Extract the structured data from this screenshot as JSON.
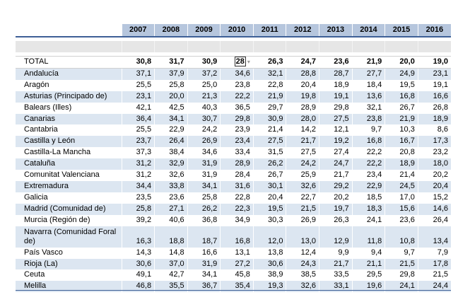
{
  "years": [
    "2007",
    "2008",
    "2009",
    "2010",
    "2011",
    "2012",
    "2013",
    "2014",
    "2015",
    "2016"
  ],
  "total": {
    "label": "TOTAL",
    "values": [
      "30,8",
      "31,7",
      "30,9",
      "28",
      "26,3",
      "24,7",
      "23,6",
      "21,9",
      "20,0",
      "19,0"
    ]
  },
  "rows": [
    {
      "label": "Andalucía",
      "values": [
        "37,1",
        "37,9",
        "37,2",
        "34,6",
        "32,1",
        "28,8",
        "28,7",
        "27,7",
        "24,9",
        "23,1"
      ]
    },
    {
      "label": "Aragón",
      "values": [
        "25,5",
        "25,8",
        "25,0",
        "23,8",
        "22,8",
        "20,4",
        "18,9",
        "18,4",
        "19,5",
        "19,1"
      ]
    },
    {
      "label": "Asturias (Principado de)",
      "values": [
        "23,1",
        "20,0",
        "21,3",
        "22,2",
        "21,9",
        "19,8",
        "19,1",
        "13,6",
        "16,8",
        "16,6"
      ]
    },
    {
      "label": "Balears (Illes)",
      "values": [
        "42,1",
        "42,5",
        "40,3",
        "36,5",
        "29,7",
        "28,9",
        "29,8",
        "32,1",
        "26,7",
        "26,8"
      ]
    },
    {
      "label": "Canarias",
      "values": [
        "36,4",
        "34,1",
        "30,7",
        "29,8",
        "30,9",
        "28,0",
        "27,5",
        "23,8",
        "21,9",
        "18,9"
      ]
    },
    {
      "label": "Cantabria",
      "values": [
        "25,5",
        "22,9",
        "24,2",
        "23,9",
        "21,4",
        "14,2",
        "12,1",
        "9,7",
        "10,3",
        "8,6"
      ]
    },
    {
      "label": "Castilla y León",
      "values": [
        "23,7",
        "26,4",
        "26,9",
        "23,4",
        "27,5",
        "21,7",
        "19,2",
        "16,8",
        "16,7",
        "17,3"
      ]
    },
    {
      "label": "Castilla-La Mancha",
      "values": [
        "37,3",
        "38,4",
        "34,6",
        "33,4",
        "31,5",
        "27,5",
        "27,4",
        "22,2",
        "20,8",
        "23,2"
      ]
    },
    {
      "label": "Cataluña",
      "values": [
        "31,2",
        "32,9",
        "31,9",
        "28,9",
        "26,2",
        "24,2",
        "24,7",
        "22,2",
        "18,9",
        "18,0"
      ]
    },
    {
      "label": "Comunitat Valenciana",
      "values": [
        "31,2",
        "32,6",
        "31,9",
        "28,4",
        "26,7",
        "25,9",
        "21,7",
        "23,4",
        "21,4",
        "20,2"
      ]
    },
    {
      "label": "Extremadura",
      "values": [
        "34,4",
        "33,8",
        "34,1",
        "31,6",
        "30,1",
        "32,6",
        "29,2",
        "22,9",
        "24,5",
        "20,4"
      ]
    },
    {
      "label": "Galicia",
      "values": [
        "23,5",
        "23,6",
        "25,8",
        "22,8",
        "20,4",
        "22,7",
        "20,2",
        "18,5",
        "17,0",
        "15,2"
      ]
    },
    {
      "label": "Madrid (Comunidad de)",
      "values": [
        "25,8",
        "27,1",
        "26,2",
        "22,3",
        "19,5",
        "21,5",
        "19,7",
        "18,3",
        "15,6",
        "14,6"
      ]
    },
    {
      "label": "Murcia (Región de)",
      "values": [
        "39,2",
        "40,6",
        "36,8",
        "34,9",
        "30,3",
        "26,9",
        "26,3",
        "24,1",
        "23,6",
        "26,4"
      ]
    },
    {
      "label": "Navarra (Comunidad Foral de)",
      "values": [
        "16,3",
        "18,8",
        "18,7",
        "16,8",
        "12,0",
        "13,0",
        "12,9",
        "11,8",
        "10,8",
        "13,4"
      ]
    },
    {
      "label": "País Vasco",
      "values": [
        "14,3",
        "14,8",
        "16,6",
        "13,1",
        "13,8",
        "12,4",
        "9,9",
        "9,4",
        "9,7",
        "7,9"
      ]
    },
    {
      "label": "Rioja (La)",
      "values": [
        "30,6",
        "37,0",
        "31,9",
        "27,2",
        "30,6",
        "24,3",
        "21,7",
        "21,1",
        "21,5",
        "17,8"
      ]
    },
    {
      "label": "Ceuta",
      "values": [
        "49,1",
        "42,7",
        "34,1",
        "45,8",
        "38,9",
        "38,5",
        "33,5",
        "29,5",
        "29,8",
        "21,5"
      ]
    },
    {
      "label": "Melilla",
      "values": [
        "46,8",
        "35,5",
        "36,7",
        "35,4",
        "19,3",
        "32,6",
        "33,1",
        "19,6",
        "24,1",
        "24,4"
      ]
    }
  ]
}
